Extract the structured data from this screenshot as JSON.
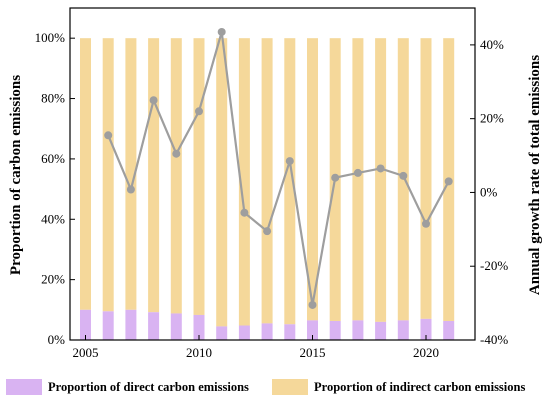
{
  "chart_data": {
    "type": "bar",
    "categories": [
      "2005",
      "2006",
      "2007",
      "2008",
      "2009",
      "2010",
      "2011",
      "2012",
      "2013",
      "2014",
      "2015",
      "2016",
      "2017",
      "2018",
      "2019",
      "2020",
      "2021"
    ],
    "x_ticks": [
      "2005",
      "2010",
      "2015",
      "2020"
    ],
    "ylabel": "Proportion of carbon emissions",
    "y2label": "Annual growth rate of total emissions",
    "ylim": [
      0,
      110
    ],
    "yticks": [
      "0%",
      "20%",
      "40%",
      "60%",
      "80%",
      "100%"
    ],
    "y2lim": [
      -40,
      50
    ],
    "y2ticks": [
      "-40%",
      "-20%",
      "0%",
      "20%",
      "40%"
    ],
    "series": [
      {
        "name": "Proportion of direct carbon emissions",
        "type": "bar",
        "axis": "left",
        "color": "#d9b3f2",
        "values": [
          10.0,
          9.5,
          10.0,
          9.2,
          8.8,
          8.3,
          4.5,
          4.8,
          5.5,
          5.2,
          6.5,
          6.3,
          6.5,
          6.0,
          6.5,
          7.0,
          6.3
        ]
      },
      {
        "name": "Proportion of indirect carbon emissions",
        "type": "bar",
        "axis": "left",
        "color": "#f5d89a",
        "values": [
          90.0,
          90.5,
          90.0,
          90.8,
          91.2,
          91.7,
          95.5,
          95.2,
          94.5,
          94.8,
          93.5,
          93.7,
          93.5,
          94.0,
          93.5,
          93.0,
          93.7
        ]
      },
      {
        "type": "line",
        "axis": "right",
        "color": "#9e9e9e",
        "values": [
          null,
          15.5,
          0.8,
          25.0,
          10.5,
          22.0,
          43.5,
          -5.5,
          -10.5,
          8.5,
          -30.5,
          4.0,
          5.3,
          6.5,
          4.5,
          -8.5,
          3.0
        ]
      }
    ],
    "legend_position": "bottom",
    "grid": false
  }
}
